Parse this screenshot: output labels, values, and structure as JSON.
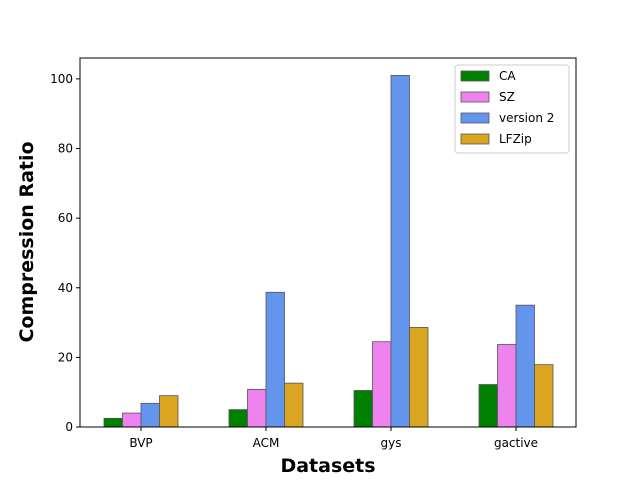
{
  "chart_data": {
    "type": "bar",
    "title": "",
    "xlabel": "Datasets",
    "ylabel": "Compression Ratio",
    "categories": [
      "BVP",
      "ACM",
      "gys",
      "gactive"
    ],
    "series": [
      {
        "name": "CA",
        "color": "#008000",
        "values": [
          2.5,
          5.0,
          10.5,
          12.2
        ]
      },
      {
        "name": "SZ",
        "color": "#ee82ee",
        "values": [
          4.0,
          10.8,
          24.5,
          23.7
        ]
      },
      {
        "name": "version 2",
        "color": "#6495ed",
        "values": [
          6.8,
          38.7,
          101.0,
          35.0
        ]
      },
      {
        "name": "LFZip",
        "color": "#daa520",
        "values": [
          9.0,
          12.6,
          28.6,
          17.9
        ]
      }
    ],
    "ylim": [
      0,
      106
    ],
    "yticks": [
      0,
      20,
      40,
      60,
      80,
      100
    ],
    "grid": false,
    "legend": "top-right"
  }
}
